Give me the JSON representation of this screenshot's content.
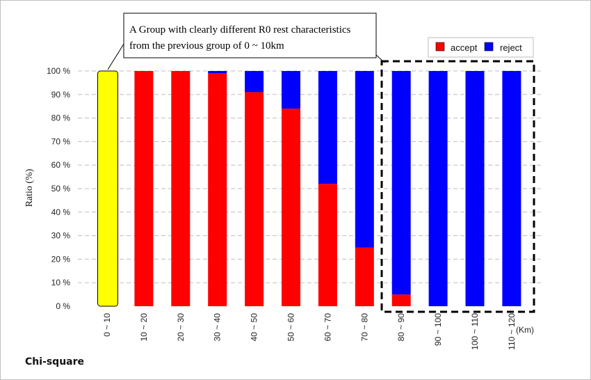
{
  "chart_data": {
    "type": "bar",
    "stacked": true,
    "ylabel": "Ratio (%)",
    "xunit": "(Km)",
    "ylim": [
      0,
      100
    ],
    "yticks": [
      "0 %",
      "10 %",
      "20 %",
      "30 %",
      "40 %",
      "50 %",
      "60 %",
      "70 %",
      "80 %",
      "90 %",
      "100 %"
    ],
    "grid": "horizontal dashed",
    "categories": [
      "0 ~ 10",
      "10 ~ 20",
      "20 ~ 30",
      "30 ~ 40",
      "40 ~ 50",
      "50 ~ 60",
      "60 ~ 70",
      "70 ~ 80",
      "80 ~ 90",
      "90 ~ 100",
      "100 ~ 110",
      "110 ~ 120"
    ],
    "series": [
      {
        "name": "accept",
        "color": "#ff0000",
        "values": [
          null,
          100,
          100,
          99,
          91,
          84,
          52,
          25,
          5,
          0,
          0,
          0
        ]
      },
      {
        "name": "reject",
        "color": "#0000ff",
        "values": [
          null,
          0,
          0,
          1,
          9,
          16,
          48,
          75,
          95,
          100,
          100,
          100
        ]
      }
    ],
    "highlight": {
      "category": "0 ~ 10",
      "value": 100,
      "color": "#ffff00"
    },
    "legend_position": "top-right",
    "annotation": {
      "lines": [
        "A Group with clearly different R0 rest characteristics",
        "from the previous group of 0 ~ 10km"
      ]
    },
    "footer": "Chi-square"
  }
}
